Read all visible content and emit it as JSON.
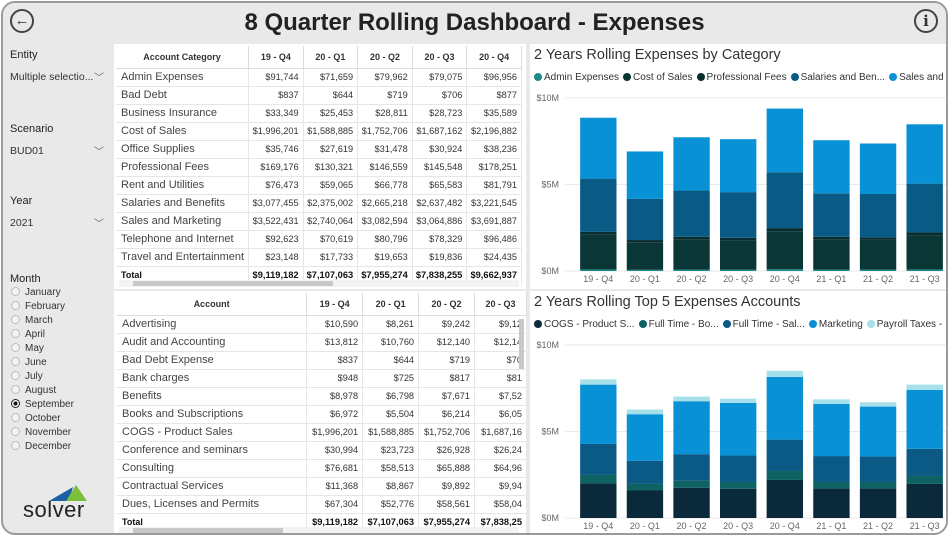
{
  "header": {
    "title": "8 Quarter Rolling Dashboard - Expenses",
    "back_icon": "arrow-left-circle-icon",
    "info_icon": "info-icon",
    "back_glyph": "←",
    "info_glyph": "i"
  },
  "filters": {
    "entity": {
      "label": "Entity",
      "value": "Multiple selectio..."
    },
    "scenario": {
      "label": "Scenario",
      "value": "BUD01"
    },
    "year": {
      "label": "Year",
      "value": "2021"
    },
    "month": {
      "label": "Month",
      "options": [
        "January",
        "February",
        "March",
        "April",
        "May",
        "June",
        "July",
        "August",
        "September",
        "October",
        "November",
        "December"
      ],
      "selected": "September"
    }
  },
  "logo": {
    "text": "solver"
  },
  "category_table": {
    "columns": [
      "Account Category",
      "19 - Q4",
      "20 - Q1",
      "20 - Q2",
      "20 - Q3",
      "20 - Q4"
    ],
    "rows": [
      [
        "Admin Expenses",
        "$91,744",
        "$71,659",
        "$79,962",
        "$79,075",
        "$96,956"
      ],
      [
        "Bad Debt",
        "$837",
        "$644",
        "$719",
        "$706",
        "$877"
      ],
      [
        "Business Insurance",
        "$33,349",
        "$25,453",
        "$28,811",
        "$28,723",
        "$35,589"
      ],
      [
        "Cost of Sales",
        "$1,996,201",
        "$1,588,885",
        "$1,752,706",
        "$1,687,162",
        "$2,196,882"
      ],
      [
        "Office Supplies",
        "$35,746",
        "$27,619",
        "$31,478",
        "$30,924",
        "$38,236"
      ],
      [
        "Professional Fees",
        "$169,176",
        "$130,321",
        "$146,559",
        "$145,548",
        "$178,251"
      ],
      [
        "Rent and Utilities",
        "$76,473",
        "$59,065",
        "$66,778",
        "$65,583",
        "$81,791"
      ],
      [
        "Salaries and Benefits",
        "$3,077,455",
        "$2,375,002",
        "$2,665,218",
        "$2,637,482",
        "$3,221,545"
      ],
      [
        "Sales and Marketing",
        "$3,522,431",
        "$2,740,064",
        "$3,082,594",
        "$3,064,886",
        "$3,691,887"
      ],
      [
        "Telephone and Internet",
        "$92,623",
        "$70,619",
        "$80,796",
        "$78,329",
        "$96,486"
      ],
      [
        "Travel and Entertainment",
        "$23,148",
        "$17,733",
        "$19,653",
        "$19,836",
        "$24,435"
      ]
    ],
    "total": [
      "Total",
      "$9,119,182",
      "$7,107,063",
      "$7,955,274",
      "$7,838,255",
      "$9,662,937"
    ]
  },
  "account_table": {
    "columns": [
      "Account",
      "19 - Q4",
      "20 - Q1",
      "20 - Q2",
      "20 - Q3"
    ],
    "rows": [
      [
        "Advertising",
        "$10,590",
        "$8,261",
        "$9,242",
        "$9,12"
      ],
      [
        "Audit and Accounting",
        "$13,812",
        "$10,760",
        "$12,140",
        "$12,14"
      ],
      [
        "Bad Debt Expense",
        "$837",
        "$644",
        "$719",
        "$70"
      ],
      [
        "Bank charges",
        "$948",
        "$725",
        "$817",
        "$81"
      ],
      [
        "Benefits",
        "$8,978",
        "$6,798",
        "$7,671",
        "$7,52"
      ],
      [
        "Books and Subscriptions",
        "$6,972",
        "$5,504",
        "$6,214",
        "$6,05"
      ],
      [
        "COGS - Product Sales",
        "$1,996,201",
        "$1,588,885",
        "$1,752,706",
        "$1,687,16"
      ],
      [
        "Conference and seminars",
        "$30,994",
        "$23,723",
        "$26,928",
        "$26,24"
      ],
      [
        "Consulting",
        "$76,681",
        "$58,513",
        "$65,888",
        "$64,96"
      ],
      [
        "Contractual Services",
        "$11,368",
        "$8,867",
        "$9,892",
        "$9,94"
      ],
      [
        "Dues, Licenses and Permits",
        "$67,304",
        "$52,776",
        "$58,561",
        "$58,04"
      ]
    ],
    "total": [
      "Total",
      "$9,119,182",
      "$7,107,063",
      "$7,955,274",
      "$7,838,25"
    ]
  },
  "chart_data": [
    {
      "type": "bar",
      "stacked": true,
      "title": "2 Years Rolling Expenses by Category",
      "categories": [
        "19 - Q4",
        "20 - Q1",
        "20 - Q2",
        "20 - Q3",
        "20 - Q4",
        "21 - Q1",
        "21 - Q2",
        "21 - Q3"
      ],
      "yticks": [
        "$0M",
        "$5M",
        "$10M"
      ],
      "ylim": [
        0,
        10
      ],
      "units": "$M",
      "grid": true,
      "legend": "top",
      "series": [
        {
          "name": "Admin Expenses",
          "color": "#1a8c8c",
          "values": [
            0.09,
            0.07,
            0.08,
            0.08,
            0.1,
            0.08,
            0.08,
            0.09
          ]
        },
        {
          "name": "Cost of Sales",
          "color": "#0b3636",
          "values": [
            2.0,
            1.59,
            1.75,
            1.69,
            2.2,
            1.75,
            1.72,
            1.97
          ]
        },
        {
          "name": "Professional Fees",
          "color": "#082d30",
          "values": [
            0.17,
            0.13,
            0.15,
            0.15,
            0.18,
            0.15,
            0.15,
            0.17
          ]
        },
        {
          "name": "Salaries and Ben...",
          "color": "#0a5a86",
          "values": [
            3.08,
            2.38,
            2.67,
            2.64,
            3.22,
            2.51,
            2.5,
            2.82
          ]
        },
        {
          "name": "Sales and M...",
          "color": "#0891d5",
          "values": [
            3.52,
            2.74,
            3.08,
            3.06,
            3.69,
            3.07,
            2.92,
            3.43
          ]
        }
      ]
    },
    {
      "type": "bar",
      "stacked": true,
      "title": "2 Years Rolling Top 5 Expenses Accounts",
      "categories": [
        "19 - Q4",
        "20 - Q1",
        "20 - Q2",
        "20 - Q3",
        "20 - Q4",
        "21 - Q1",
        "21 - Q2",
        "21 - Q3"
      ],
      "yticks": [
        "$0M",
        "$5M",
        "$10M"
      ],
      "ylim": [
        0,
        10
      ],
      "units": "$M",
      "grid": true,
      "legend": "top",
      "series": [
        {
          "name": "COGS - Product S...",
          "color": "#0a2a3b",
          "values": [
            2.0,
            1.59,
            1.75,
            1.69,
            2.2,
            1.7,
            1.7,
            1.97
          ]
        },
        {
          "name": "Full Time - Bo...",
          "color": "#0e6262",
          "values": [
            0.49,
            0.38,
            0.41,
            0.39,
            0.52,
            0.38,
            0.38,
            0.46
          ]
        },
        {
          "name": "Full Time - Sal...",
          "color": "#0b5a86",
          "values": [
            1.79,
            1.34,
            1.53,
            1.53,
            1.81,
            1.5,
            1.48,
            1.57
          ]
        },
        {
          "name": "Marketing",
          "color": "#0891d5",
          "values": [
            3.43,
            2.69,
            3.06,
            3.04,
            3.63,
            3.02,
            2.88,
            3.4
          ]
        },
        {
          "name": "Payroll Taxes - ...",
          "color": "#a6e0ea",
          "values": [
            0.3,
            0.27,
            0.27,
            0.25,
            0.35,
            0.26,
            0.25,
            0.31
          ]
        }
      ]
    }
  ]
}
